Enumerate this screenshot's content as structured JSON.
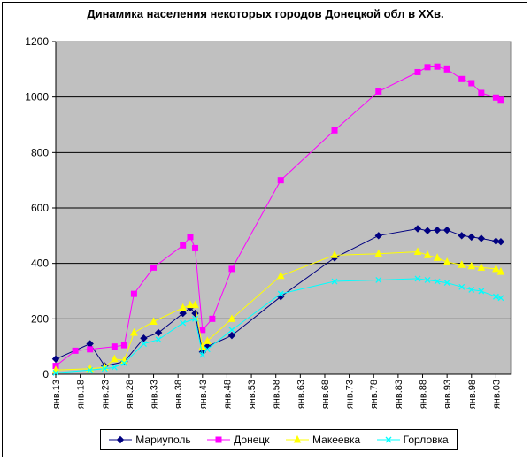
{
  "chart_data": {
    "type": "line",
    "title": "Динамика населения некоторых городов Донецкой обл в ХХв.",
    "ylim": [
      0,
      1200
    ],
    "y_ticks": [
      "0",
      "200",
      "400",
      "600",
      "800",
      "1000",
      "1200"
    ],
    "x_range": [
      1913,
      2006
    ],
    "x_tick_labels": [
      "янв.13",
      "янв.18",
      "янв.23",
      "янв.28",
      "янв.33",
      "янв.38",
      "янв.43",
      "янв.48",
      "янв.53",
      "янв.58",
      "янв.63",
      "янв.68",
      "янв.73",
      "янв.78",
      "янв.83",
      "янв.88",
      "янв.93",
      "янв.98",
      "янв.03"
    ],
    "grid": "horizontal",
    "plot_background": "#c0c0c0",
    "legend_position": "bottom",
    "series": [
      {
        "name": "Мариуполь",
        "color": "#000080",
        "marker": "diamond",
        "x": [
          1913,
          1920,
          1923,
          1927,
          1931,
          1934,
          1939,
          1940.5,
          1941.5,
          1943,
          1944,
          1949,
          1959,
          1970,
          1979,
          1987,
          1989,
          1991,
          1993,
          1996,
          1998,
          2000,
          2003,
          2004
        ],
        "y": [
          55,
          110,
          30,
          45,
          130,
          150,
          220,
          240,
          220,
          80,
          100,
          140,
          280,
          420,
          500,
          525,
          518,
          520,
          520,
          500,
          495,
          490,
          480,
          478
        ]
      },
      {
        "name": "Донецк",
        "color": "#ff00ff",
        "marker": "square",
        "x": [
          1913,
          1917,
          1920,
          1925,
          1927,
          1929,
          1933,
          1939,
          1940.5,
          1941.5,
          1943,
          1945,
          1949,
          1959,
          1970,
          1979,
          1987,
          1989,
          1991,
          1993,
          1996,
          1998,
          2000,
          2003,
          2004
        ],
        "y": [
          30,
          85,
          90,
          100,
          105,
          290,
          385,
          465,
          495,
          455,
          160,
          200,
          380,
          700,
          880,
          1020,
          1090,
          1108,
          1110,
          1100,
          1065,
          1050,
          1015,
          998,
          990
        ]
      },
      {
        "name": "Макеевка",
        "color": "#ffff00",
        "marker": "triangle",
        "x": [
          1913,
          1920,
          1923,
          1925,
          1927,
          1929,
          1933,
          1939,
          1940.5,
          1941.5,
          1943,
          1944,
          1949,
          1959,
          1970,
          1979,
          1987,
          1989,
          1991,
          1993,
          1996,
          1998,
          2000,
          2003,
          2004
        ],
        "y": [
          15,
          20,
          25,
          55,
          50,
          150,
          190,
          240,
          250,
          250,
          100,
          120,
          200,
          355,
          430,
          435,
          442,
          430,
          420,
          405,
          395,
          390,
          385,
          380,
          370
        ]
      },
      {
        "name": "Горловка",
        "color": "#00ffff",
        "marker": "x",
        "x": [
          1913,
          1920,
          1923,
          1925,
          1927,
          1931,
          1934,
          1939,
          1941.5,
          1943,
          1944,
          1949,
          1959,
          1970,
          1979,
          1987,
          1989,
          1991,
          1993,
          1996,
          1998,
          2000,
          2003,
          2004
        ],
        "y": [
          5,
          15,
          20,
          25,
          40,
          110,
          125,
          185,
          200,
          70,
          90,
          160,
          290,
          335,
          340,
          345,
          340,
          335,
          330,
          315,
          305,
          300,
          280,
          275
        ]
      }
    ]
  }
}
